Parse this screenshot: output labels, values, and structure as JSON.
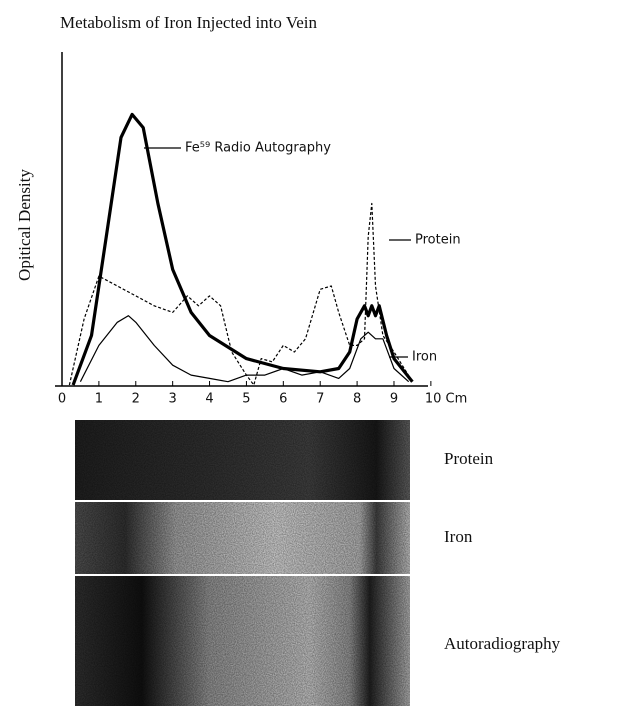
{
  "chart_data": {
    "type": "line",
    "title": "Metabolism of Iron Injected into Vein",
    "y_label": "Opitical Density",
    "xlim": [
      0,
      10.6
    ],
    "ylim": [
      0,
      100
    ],
    "xticks": [
      0,
      1,
      2,
      3,
      4,
      5,
      6,
      7,
      8,
      9,
      {
        "value": 10,
        "label": "10 Cm"
      }
    ],
    "series": [
      {
        "name": "Fe⁵⁹ Radio Autography",
        "color": "#000000",
        "style": "bold",
        "x": [
          0.3,
          0.8,
          1.2,
          1.6,
          1.9,
          2.2,
          2.6,
          3,
          3.5,
          4,
          5,
          6,
          7,
          7.5,
          7.8,
          8,
          8.2,
          8.3,
          8.4,
          8.5,
          8.6,
          8.8,
          9,
          9.5
        ],
        "values": [
          0,
          15,
          45,
          75,
          82,
          78,
          55,
          35,
          22,
          15,
          8,
          5,
          4,
          5,
          10,
          20,
          24,
          21,
          24,
          21,
          24,
          15,
          8,
          1
        ]
      },
      {
        "name": "Protein",
        "color": "#000000",
        "style": "dashed",
        "x": [
          0.2,
          0.6,
          1,
          1.5,
          2,
          2.5,
          3,
          3.4,
          3.7,
          4,
          4.3,
          4.6,
          5,
          5.2,
          5.4,
          5.7,
          6,
          6.3,
          6.6,
          7,
          7.3,
          7.5,
          7.8,
          8,
          8.2,
          8.3,
          8.4,
          8.5,
          8.7,
          9,
          9.5
        ],
        "values": [
          0,
          20,
          33,
          30,
          27,
          24,
          22,
          27,
          24,
          27,
          24,
          10,
          3,
          0,
          8,
          7,
          12,
          10,
          14,
          29,
          30,
          22,
          12,
          12,
          14,
          45,
          55,
          30,
          15,
          10,
          1
        ]
      },
      {
        "name": "Iron",
        "color": "#000000",
        "style": "solid",
        "x": [
          0.5,
          1,
          1.5,
          1.8,
          2,
          2.5,
          3,
          3.5,
          4,
          4.5,
          5,
          5.5,
          6,
          6.5,
          7,
          7.5,
          7.8,
          8.1,
          8.3,
          8.5,
          8.7,
          9,
          9.4
        ],
        "values": [
          1,
          12,
          19,
          21,
          19,
          12,
          6,
          3,
          2,
          1,
          3,
          3,
          5,
          3,
          4,
          2,
          5,
          14,
          16,
          14,
          14,
          5,
          1
        ]
      }
    ],
    "strips": [
      "Protein",
      "Iron",
      "Autoradiography"
    ]
  }
}
